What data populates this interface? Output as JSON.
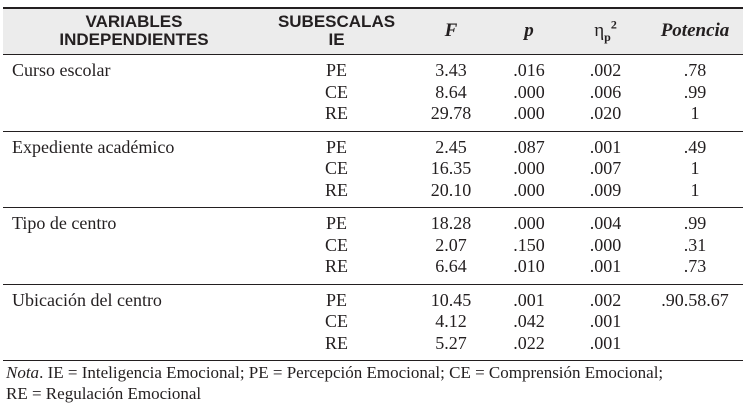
{
  "headers": {
    "var_line1": "VARIABLES",
    "var_line2": "INDEPENDIENTES",
    "sub_line1": "SUBESCALAS",
    "sub_line2": "IE",
    "f": "F",
    "p": "p",
    "eta_symbol": "η",
    "eta_sub": "p",
    "eta_sup": "2",
    "power": "Potencia"
  },
  "groups": [
    {
      "variable": "Curso escolar",
      "rows": [
        {
          "sub": "PE",
          "f": "3.43",
          "p": ".016",
          "eta": ".002",
          "power": ".78"
        },
        {
          "sub": "CE",
          "f": "8.64",
          "p": ".000",
          "eta": ".006",
          "power": ".99"
        },
        {
          "sub": "RE",
          "f": "29.78",
          "p": ".000",
          "eta": ".020",
          "power": "1"
        }
      ]
    },
    {
      "variable": "Expediente académico",
      "rows": [
        {
          "sub": "PE",
          "f": "2.45",
          "p": ".087",
          "eta": ".001",
          "power": ".49"
        },
        {
          "sub": "CE",
          "f": "16.35",
          "p": ".000",
          "eta": ".007",
          "power": "1"
        },
        {
          "sub": "RE",
          "f": "20.10",
          "p": ".000",
          "eta": ".009",
          "power": "1"
        }
      ]
    },
    {
      "variable": "Tipo de centro",
      "rows": [
        {
          "sub": "PE",
          "f": "18.28",
          "p": ".000",
          "eta": ".004",
          "power": ".99"
        },
        {
          "sub": "CE",
          "f": "2.07",
          "p": ".150",
          "eta": ".000",
          "power": ".31"
        },
        {
          "sub": "RE",
          "f": "6.64",
          "p": ".010",
          "eta": ".001",
          "power": ".73"
        }
      ]
    },
    {
      "variable": "Ubicación del centro",
      "rows": [
        {
          "sub": "PE",
          "f": "10.45",
          "p": ".001",
          "eta": ".002",
          "power": ".90.58.67"
        },
        {
          "sub": "CE",
          "f": "4.12",
          "p": ".042",
          "eta": ".001",
          "power": ""
        },
        {
          "sub": "RE",
          "f": "5.27",
          "p": ".022",
          "eta": ".001",
          "power": ""
        }
      ]
    }
  ],
  "note": {
    "label": "Nota",
    "line1": ". IE = Inteligencia Emocional; PE = Percepción Emocional; CE = Comprensión Emocional;",
    "line2": "RE = Regulación Emocional"
  }
}
